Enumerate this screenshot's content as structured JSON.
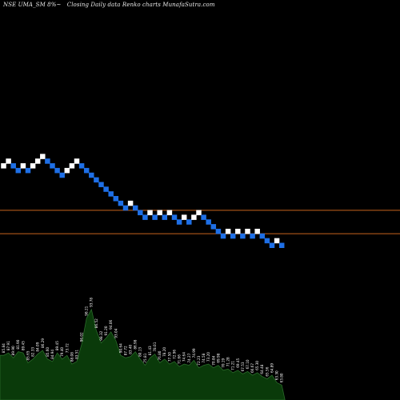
{
  "header": {
    "symbol": "NSE UMA_SM 8%~",
    "subtitle": "Closing Daily data  Renko  charts MunafaSutra.com"
  },
  "colors": {
    "background": "#000000",
    "brick_up": "#ffffff",
    "brick_down": "#1e6fe6",
    "lines": "#c8641e",
    "volume_fill": "#0a3a0a",
    "volume_line": "#2a6a2a",
    "labels": "#ffffff"
  },
  "chart_data": {
    "type": "renko",
    "bricks": [
      {
        "level": 2,
        "dir": "up"
      },
      {
        "level": 3,
        "dir": "up"
      },
      {
        "level": 2,
        "dir": "down"
      },
      {
        "level": 1,
        "dir": "down"
      },
      {
        "level": 2,
        "dir": "up"
      },
      {
        "level": 1,
        "dir": "down"
      },
      {
        "level": 2,
        "dir": "up"
      },
      {
        "level": 3,
        "dir": "up"
      },
      {
        "level": 4,
        "dir": "up"
      },
      {
        "level": 3,
        "dir": "down"
      },
      {
        "level": 2,
        "dir": "down"
      },
      {
        "level": 1,
        "dir": "down"
      },
      {
        "level": 0,
        "dir": "down"
      },
      {
        "level": 1,
        "dir": "up"
      },
      {
        "level": 2,
        "dir": "up"
      },
      {
        "level": 3,
        "dir": "up"
      },
      {
        "level": 2,
        "dir": "down"
      },
      {
        "level": 1,
        "dir": "down"
      },
      {
        "level": 0,
        "dir": "down"
      },
      {
        "level": -1,
        "dir": "down"
      },
      {
        "level": -2,
        "dir": "down"
      },
      {
        "level": -3,
        "dir": "down"
      },
      {
        "level": -4,
        "dir": "down"
      },
      {
        "level": -5,
        "dir": "down"
      },
      {
        "level": -6,
        "dir": "down"
      },
      {
        "level": -7,
        "dir": "down"
      },
      {
        "level": -6,
        "dir": "up"
      },
      {
        "level": -7,
        "dir": "down"
      },
      {
        "level": -8,
        "dir": "down"
      },
      {
        "level": -9,
        "dir": "down"
      },
      {
        "level": -8,
        "dir": "up"
      },
      {
        "level": -9,
        "dir": "down"
      },
      {
        "level": -8,
        "dir": "up"
      },
      {
        "level": -9,
        "dir": "down"
      },
      {
        "level": -8,
        "dir": "up"
      },
      {
        "level": -9,
        "dir": "down"
      },
      {
        "level": -10,
        "dir": "down"
      },
      {
        "level": -9,
        "dir": "up"
      },
      {
        "level": -10,
        "dir": "down"
      },
      {
        "level": -9,
        "dir": "up"
      },
      {
        "level": -8,
        "dir": "up"
      },
      {
        "level": -9,
        "dir": "down"
      },
      {
        "level": -10,
        "dir": "down"
      },
      {
        "level": -11,
        "dir": "down"
      },
      {
        "level": -12,
        "dir": "down"
      },
      {
        "level": -13,
        "dir": "down"
      },
      {
        "level": -12,
        "dir": "up"
      },
      {
        "level": -13,
        "dir": "down"
      },
      {
        "level": -12,
        "dir": "up"
      },
      {
        "level": -13,
        "dir": "down"
      },
      {
        "level": -12,
        "dir": "up"
      },
      {
        "level": -13,
        "dir": "down"
      },
      {
        "level": -12,
        "dir": "up"
      },
      {
        "level": -13,
        "dir": "down"
      },
      {
        "level": -14,
        "dir": "down"
      },
      {
        "level": -15,
        "dir": "down"
      },
      {
        "level": -14,
        "dir": "up"
      },
      {
        "level": -15,
        "dir": "down"
      }
    ],
    "reference_lines": [
      -7.5,
      -12.5
    ],
    "volume_labels": [
      "85.84",
      "87.91",
      "89.90",
      "81.90",
      "89.45",
      "85.65",
      "82.33",
      "84.09",
      "86.29",
      "85.60",
      "84.94",
      "89.45",
      "79.40",
      "73.72",
      "88.08",
      "83.51",
      "96.02",
      "98.21",
      "93.78",
      "86.52",
      "98.32",
      "91.20",
      "94.06",
      "93.04",
      "90.64",
      "87.72",
      "83.40",
      "86.98",
      "80.13",
      "75.81",
      "81.43",
      "78.01",
      "76.80",
      "78.20",
      "77.50",
      "72.96",
      "71.66",
      "74.64",
      "74.27",
      "74.99",
      "72.23",
      "74.58",
      "73.20",
      "70.84",
      "69.98",
      "70.19",
      "71.28",
      "71.21",
      "69.45",
      "67.53",
      "67.10",
      "66.67",
      "65.30",
      "64.48",
      "65.56",
      "64.89",
      "63.30",
      "63.80"
    ],
    "volume_values": [
      36,
      38,
      34,
      39,
      38,
      30,
      33,
      37,
      40,
      33,
      31,
      38,
      33,
      36,
      29,
      31,
      45,
      66,
      73,
      56,
      46,
      50,
      55,
      48,
      36,
      34,
      35,
      39,
      33,
      28,
      34,
      37,
      30,
      33,
      29,
      31,
      27,
      29,
      28,
      32,
      26,
      28,
      29,
      26,
      28,
      24,
      25,
      22,
      24,
      21,
      23,
      20,
      22,
      19,
      17,
      20,
      14,
      12
    ]
  }
}
